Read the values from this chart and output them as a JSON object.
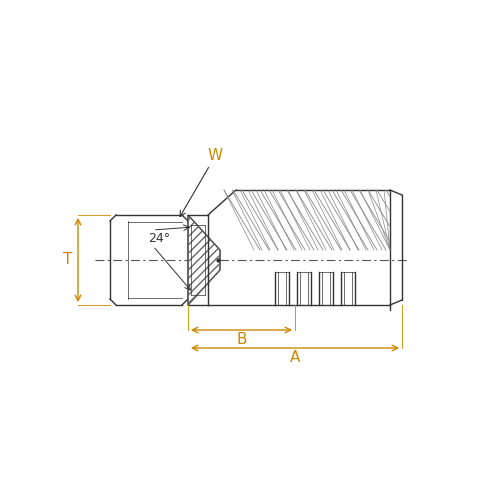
{
  "bg_color": "#ffffff",
  "line_color": "#333333",
  "dim_color": "#cc8800",
  "centerline_color": "#555555",
  "hatch_color": "#555555",
  "label_W": "W",
  "label_T": "T",
  "label_24": "24°",
  "label_B": "B",
  "label_A": "A",
  "dim_color_orange": "#cc8800",
  "line_width": 1.0,
  "thin_line": 0.5
}
